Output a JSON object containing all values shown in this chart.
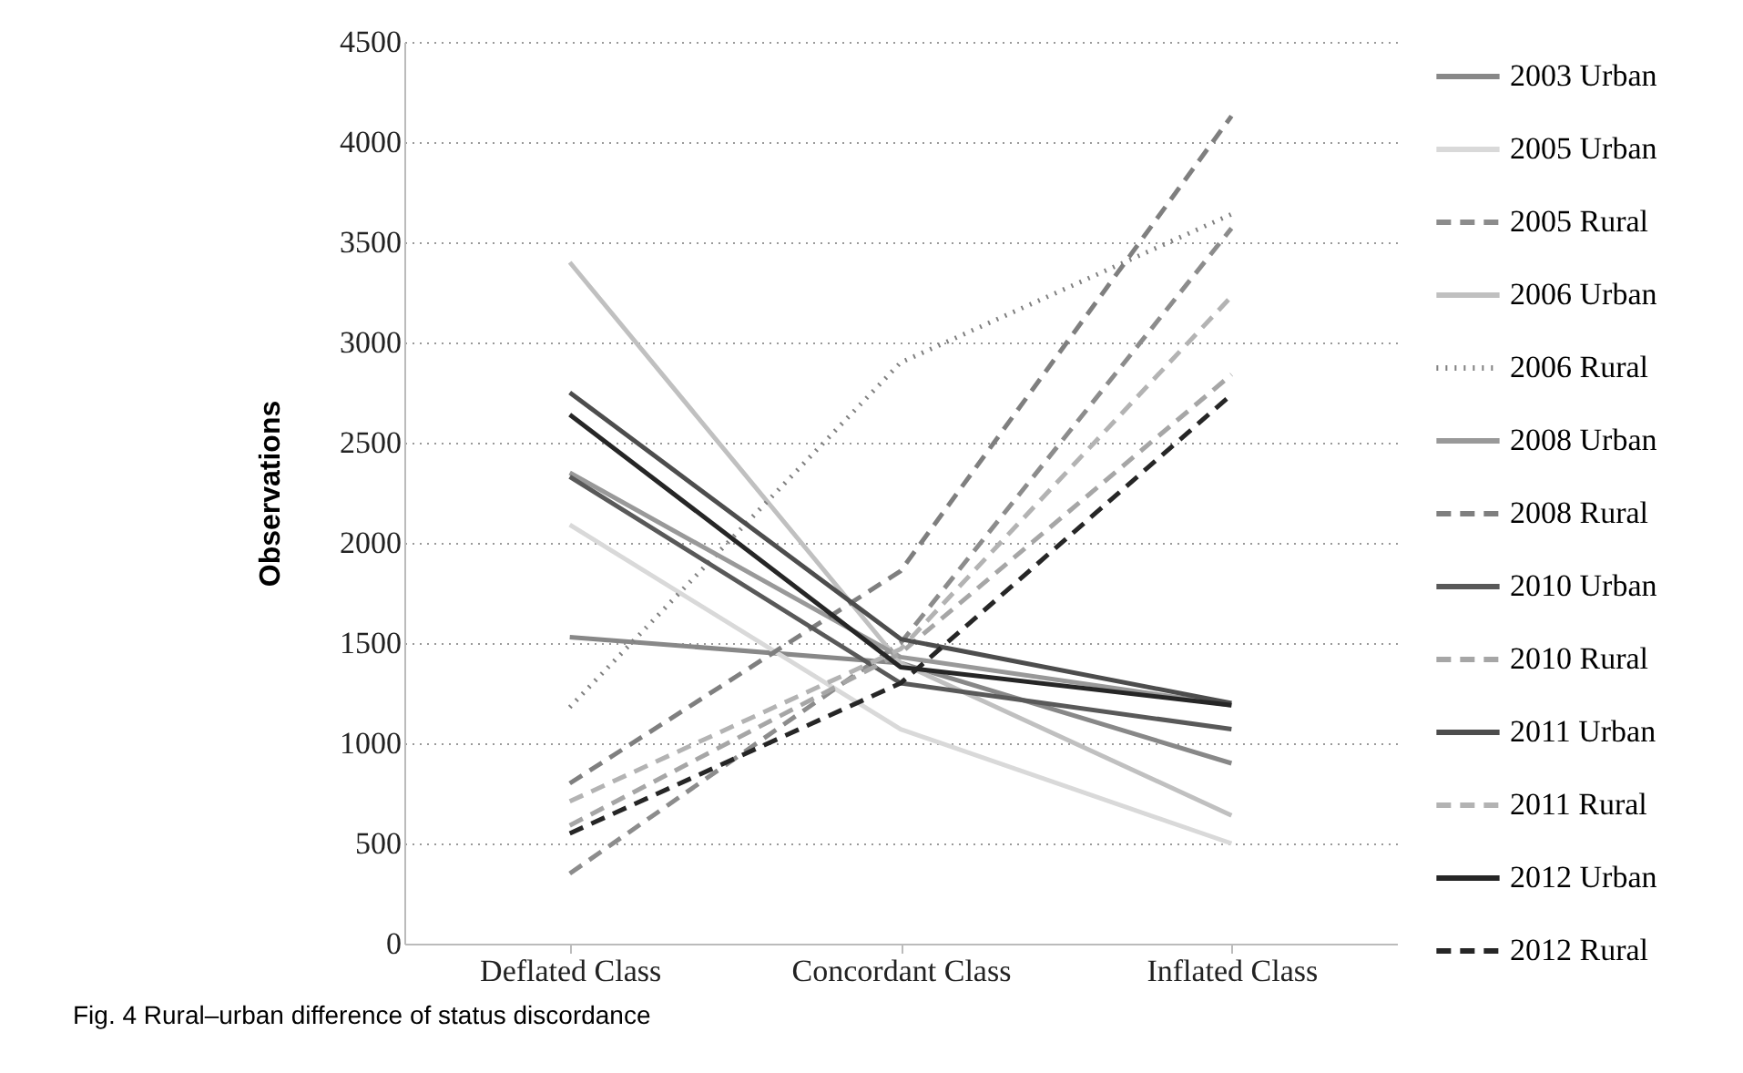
{
  "chart_data": {
    "type": "line",
    "ylabel": "Observations",
    "categories": [
      "Deflated Class",
      "Concordant Class",
      "Inflated Class"
    ],
    "ylim": [
      0,
      4500
    ],
    "yticks": [
      0,
      500,
      1000,
      1500,
      2000,
      2500,
      3000,
      3500,
      4000,
      4500
    ],
    "grid": "y",
    "legend": "right",
    "marker": "none",
    "annotations": [
      "Fig. 4 Rural–urban difference of status discordance"
    ],
    "series": [
      {
        "name": "2003 Urban",
        "color": "#888888",
        "line_style": "solid",
        "values": [
          1530,
          1400,
          900
        ]
      },
      {
        "name": "2005 Urban",
        "color": "#d9d9d9",
        "line_style": "solid",
        "values": [
          2090,
          1070,
          500
        ]
      },
      {
        "name": "2005 Rural",
        "color": "#8c8c8c",
        "line_style": "dashed",
        "values": [
          350,
          1500,
          3570
        ]
      },
      {
        "name": "2006 Urban",
        "color": "#c0c0c0",
        "line_style": "solid",
        "values": [
          3400,
          1400,
          640
        ]
      },
      {
        "name": "2006 Rural",
        "color": "#808080",
        "line_style": "dotted",
        "values": [
          1180,
          2900,
          3640
        ]
      },
      {
        "name": "2008 Urban",
        "color": "#999999",
        "line_style": "solid",
        "values": [
          2350,
          1430,
          1190
        ]
      },
      {
        "name": "2008 Rural",
        "color": "#7f7f7f",
        "line_style": "dashed",
        "values": [
          800,
          1860,
          4130
        ]
      },
      {
        "name": "2010 Urban",
        "color": "#595959",
        "line_style": "solid",
        "values": [
          2330,
          1300,
          1070
        ]
      },
      {
        "name": "2010 Rural",
        "color": "#a6a6a6",
        "line_style": "dashed",
        "values": [
          590,
          1450,
          2840
        ]
      },
      {
        "name": "2011 Urban",
        "color": "#4d4d4d",
        "line_style": "solid",
        "values": [
          2750,
          1520,
          1200
        ]
      },
      {
        "name": "2011 Rural",
        "color": "#b3b3b3",
        "line_style": "dashed",
        "values": [
          710,
          1470,
          3230
        ]
      },
      {
        "name": "2012 Urban",
        "color": "#262626",
        "line_style": "solid",
        "values": [
          2640,
          1380,
          1190
        ]
      },
      {
        "name": "2012 Rural",
        "color": "#262626",
        "line_style": "dashed",
        "values": [
          550,
          1300,
          2740
        ]
      }
    ]
  }
}
